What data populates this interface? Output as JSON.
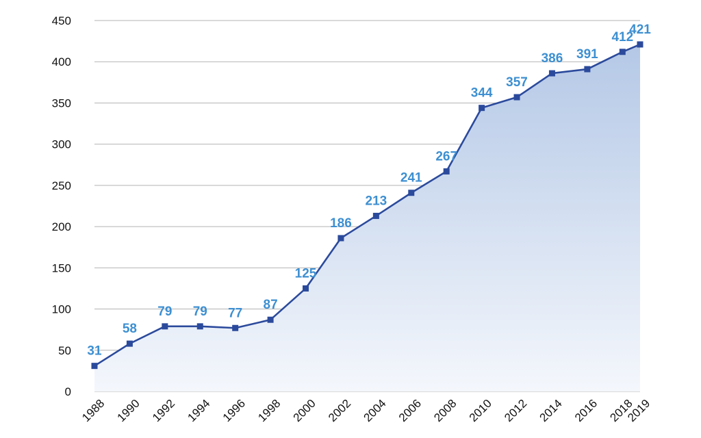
{
  "chart_data": {
    "type": "area",
    "title": "",
    "xlabel": "",
    "ylabel": "",
    "x": [
      "1988",
      "1990",
      "1992",
      "1994",
      "1996",
      "1998",
      "2000",
      "2002",
      "2004",
      "2006",
      "2008",
      "2010",
      "2012",
      "2014",
      "2016",
      "2018",
      "2019"
    ],
    "series": [
      {
        "values": [
          31,
          58,
          79,
          79,
          77,
          87,
          125,
          186,
          213,
          241,
          267,
          344,
          357,
          386,
          391,
          412,
          421
        ]
      }
    ],
    "ylim": [
      0,
      450
    ],
    "yticks": [
      0,
      50,
      100,
      150,
      200,
      250,
      300,
      350,
      400,
      450
    ],
    "grid": true,
    "legend": "none",
    "colors": {
      "line": "#2b4a9c",
      "marker": "#2b4a9c",
      "data_label": "#3d8fd1",
      "fill_top": "#b4c8e6",
      "fill_bottom": "#f4f7fc",
      "grid": "#b3b3b3",
      "axis_text": "#111111"
    }
  }
}
